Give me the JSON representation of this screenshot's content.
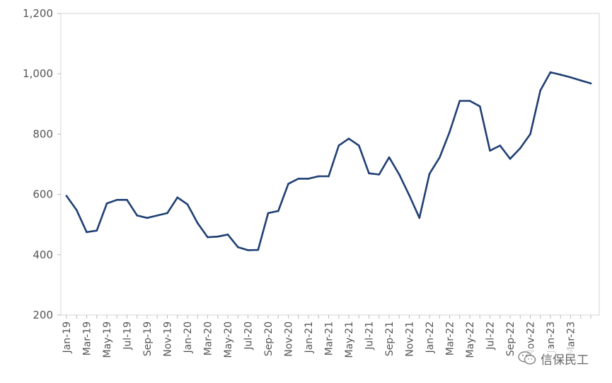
{
  "chart_data": {
    "type": "line",
    "title": "",
    "xlabel": "",
    "ylabel": "",
    "ylim": [
      200,
      1200
    ],
    "yticks": [
      200,
      400,
      600,
      800,
      1000,
      1200
    ],
    "ytick_labels": [
      "200",
      "400",
      "600",
      "800",
      "1,000",
      "1,200"
    ],
    "grid": false,
    "x_tick_labels": [
      "Jan-19",
      "Mar-19",
      "May-19",
      "Jul-19",
      "Sep-19",
      "Nov-19",
      "Jan-20",
      "Mar-20",
      "May-20",
      "Jul-20",
      "Sep-20",
      "Nov-20",
      "Jan-21",
      "Mar-21",
      "May-21",
      "Jul-21",
      "Sep-21",
      "Nov-21",
      "Jan-22",
      "Mar-22",
      "May-22",
      "Jul-22",
      "Sep-22",
      "Nov-22",
      "Jan-23",
      "Mar-23"
    ],
    "x": [
      "Jan-19",
      "Feb-19",
      "Mar-19",
      "Apr-19",
      "May-19",
      "Jun-19",
      "Jul-19",
      "Aug-19",
      "Sep-19",
      "Oct-19",
      "Nov-19",
      "Dec-19",
      "Jan-20",
      "Feb-20",
      "Mar-20",
      "Apr-20",
      "May-20",
      "Jun-20",
      "Jul-20",
      "Aug-20",
      "Sep-20",
      "Oct-20",
      "Nov-20",
      "Dec-20",
      "Jan-21",
      "Feb-21",
      "Mar-21",
      "Apr-21",
      "May-21",
      "Jun-21",
      "Jul-21",
      "Aug-21",
      "Sep-21",
      "Oct-21",
      "Nov-21",
      "Dec-21",
      "Jan-22",
      "Feb-22",
      "Mar-22",
      "Apr-22",
      "May-22",
      "Jun-22",
      "Jul-22",
      "Aug-22",
      "Sep-22",
      "Oct-22",
      "Nov-22",
      "Dec-22",
      "Jan-23",
      "Feb-23",
      "Mar-23",
      "Apr-23",
      "May-23"
    ],
    "series": [
      {
        "color": "#1f3f73",
        "values": [
          595,
          548,
          475,
          480,
          570,
          582,
          582,
          530,
          522,
          530,
          538,
          590,
          567,
          505,
          458,
          460,
          467,
          425,
          415,
          416,
          538,
          545,
          635,
          652,
          652,
          660,
          660,
          762,
          785,
          762,
          670,
          666,
          723,
          666,
          597,
          522,
          668,
          722,
          807,
          910,
          910,
          892,
          745,
          762,
          718,
          753,
          800,
          945,
          1005,
          997,
          988,
          978,
          968
        ]
      }
    ]
  },
  "watermark": {
    "text": "信保民工",
    "icon": "wechat-icon"
  }
}
